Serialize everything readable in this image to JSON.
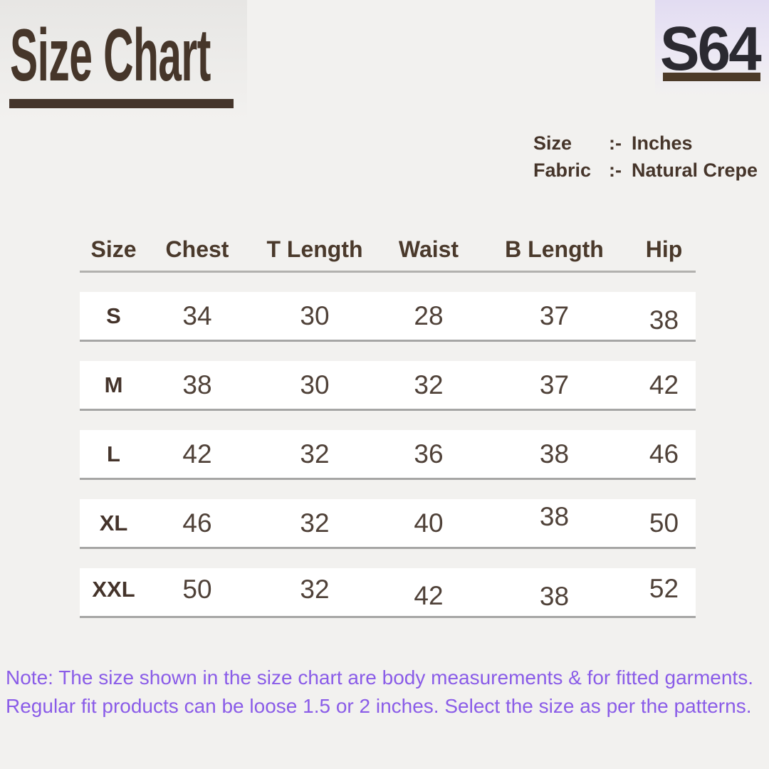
{
  "header": {
    "title": "Size Chart",
    "code": "S64"
  },
  "info": {
    "rows": [
      {
        "label": "Size",
        "separator": ":-",
        "value": "Inches"
      },
      {
        "label": "Fabric",
        "separator": ":-",
        "value": "Natural Crepe"
      }
    ]
  },
  "chart_data": {
    "type": "table",
    "title": "Size Chart",
    "unit": "Inches",
    "fabric": "Natural Crepe",
    "columns": [
      "Size",
      "Chest",
      "T Length",
      "Waist",
      "B Length",
      "Hip"
    ],
    "rows": [
      [
        "S",
        "34",
        "30",
        "28",
        "37",
        "38"
      ],
      [
        "M",
        "38",
        "30",
        "32",
        "37",
        "42"
      ],
      [
        "L",
        "42",
        "32",
        "36",
        "38",
        "46"
      ],
      [
        "XL",
        "46",
        "32",
        "40",
        "38",
        "50"
      ],
      [
        "XXL",
        "50",
        "32",
        "42",
        "38",
        "52"
      ]
    ]
  },
  "note": {
    "lines": [
      "Note: The size shown in the size chart are body measurements & for fitted garments.",
      "Regular fit products can be loose 1.5 or 2 inches. Select the size as per the patterns."
    ]
  },
  "colors": {
    "background": "#f2f1ef",
    "brand_brown": "#46362a",
    "code_dark": "#2b2a31",
    "note_purple": "#8a5ce8",
    "lavender_tint": "#e2dcf2",
    "row_background": "#ffffff",
    "row_border": "#a6a6a5"
  }
}
